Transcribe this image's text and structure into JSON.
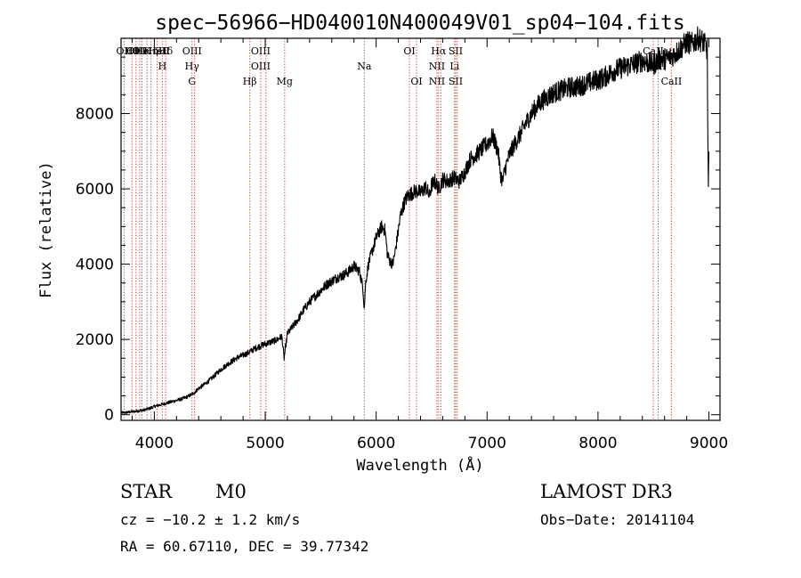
{
  "chart_data": {
    "type": "line",
    "title": "spec−56966−HD040010N400049V01_sp04−104.fits",
    "xlabel": "Wavelength (Å)",
    "ylabel": "Flux (relative)",
    "xlim": [
      3700,
      9100
    ],
    "ylim": [
      -150,
      10000
    ],
    "xticks": [
      4000,
      5000,
      6000,
      7000,
      8000,
      9000
    ],
    "yticks": [
      0,
      2000,
      4000,
      6000,
      8000
    ],
    "grid": false,
    "series": [
      {
        "name": "flux",
        "x": [
          3700,
          3750,
          3800,
          3850,
          3900,
          3950,
          4000,
          4050,
          4100,
          4150,
          4200,
          4250,
          4300,
          4350,
          4400,
          4450,
          4500,
          4550,
          4600,
          4650,
          4700,
          4750,
          4800,
          4850,
          4900,
          4950,
          5000,
          5050,
          5100,
          5150,
          5170,
          5200,
          5250,
          5300,
          5350,
          5400,
          5450,
          5500,
          5550,
          5600,
          5650,
          5700,
          5750,
          5800,
          5850,
          5880,
          5893,
          5905,
          5930,
          5950,
          6000,
          6050,
          6080,
          6100,
          6120,
          6150,
          6170,
          6200,
          6220,
          6250,
          6280,
          6300,
          6330,
          6360,
          6400,
          6450,
          6480,
          6500,
          6530,
          6563,
          6600,
          6650,
          6700,
          6750,
          6800,
          6850,
          6900,
          6950,
          7000,
          7050,
          7100,
          7120,
          7140,
          7160,
          7200,
          7250,
          7300,
          7350,
          7400,
          7450,
          7500,
          7550,
          7600,
          7650,
          7700,
          7750,
          7800,
          7850,
          7900,
          7950,
          8000,
          8050,
          8100,
          8150,
          8200,
          8250,
          8300,
          8350,
          8400,
          8450,
          8500,
          8550,
          8600,
          8650,
          8700,
          8750,
          8800,
          8850,
          8900,
          8950,
          8985,
          8990,
          8995,
          9000
        ],
        "values": [
          50,
          60,
          80,
          100,
          120,
          160,
          220,
          260,
          300,
          340,
          380,
          420,
          480,
          560,
          700,
          800,
          920,
          1060,
          1200,
          1320,
          1420,
          1520,
          1580,
          1650,
          1750,
          1820,
          1880,
          1930,
          1980,
          2080,
          1500,
          2150,
          2350,
          2550,
          2800,
          3000,
          3150,
          3300,
          3450,
          3550,
          3650,
          3700,
          3800,
          3950,
          3800,
          3400,
          2800,
          3500,
          4000,
          4200,
          4700,
          5000,
          4900,
          4300,
          4100,
          4000,
          4300,
          4900,
          5300,
          5600,
          5800,
          5850,
          5900,
          5950,
          5900,
          6050,
          5800,
          6100,
          6200,
          6000,
          6250,
          6200,
          6300,
          6200,
          6450,
          6800,
          6900,
          7050,
          7200,
          7400,
          7000,
          6400,
          6200,
          6500,
          6900,
          7200,
          7450,
          7750,
          8000,
          8200,
          8350,
          8450,
          8550,
          8600,
          8650,
          8700,
          8700,
          8750,
          8800,
          8850,
          8900,
          8950,
          9050,
          9150,
          9200,
          9250,
          9300,
          9350,
          9400,
          9350,
          9300,
          9450,
          9450,
          9500,
          9600,
          9750,
          9900,
          9850,
          10000,
          9900,
          9700,
          7500,
          6000,
          6900
        ]
      }
    ],
    "lines": [
      {
        "wave": 3727,
        "rows": [
          "OII"
        ]
      },
      {
        "wave": 3798,
        "rows": [
          "Hθ"
        ]
      },
      {
        "wave": 3835,
        "rows": [
          "CIII"
        ]
      },
      {
        "wave": 3869,
        "rows": [
          "OII"
        ]
      },
      {
        "wave": 3889,
        "rows": [
          "He"
        ]
      },
      {
        "wave": 3934,
        "rows": [
          "K"
        ]
      },
      {
        "wave": 3970,
        "rows": [
          "Hη"
        ]
      },
      {
        "wave": 4026,
        "rows": [
          "HeI"
        ]
      },
      {
        "wave": 4072,
        "rows": [
          "SII",
          "H"
        ]
      },
      {
        "wave": 4102,
        "rows": [
          "Hδ"
        ]
      },
      {
        "wave": 4340,
        "rows": [
          "OIII",
          "Hγ",
          "G"
        ]
      },
      {
        "wave": 4363,
        "rows": []
      },
      {
        "wave": 4861,
        "rows": [
          "",
          "",
          "Hβ"
        ]
      },
      {
        "wave": 4959,
        "rows": [
          "OIII",
          "OIII"
        ]
      },
      {
        "wave": 5007,
        "rows": []
      },
      {
        "wave": 5175,
        "rows": [
          "",
          "",
          "Mg"
        ]
      },
      {
        "wave": 5893,
        "rows": [
          "",
          "Na"
        ]
      },
      {
        "wave": 6300,
        "rows": [
          "OI"
        ]
      },
      {
        "wave": 6364,
        "rows": [
          "",
          "",
          "OI"
        ]
      },
      {
        "wave": 6548,
        "rows": [
          "",
          "NII",
          "NII"
        ]
      },
      {
        "wave": 6563,
        "rows": [
          "Hα"
        ]
      },
      {
        "wave": 6583,
        "rows": []
      },
      {
        "wave": 6707,
        "rows": [
          "",
          "Li"
        ]
      },
      {
        "wave": 6717,
        "rows": [
          "SII",
          "",
          "SII"
        ]
      },
      {
        "wave": 6731,
        "rows": []
      },
      {
        "wave": 8498,
        "rows": [
          "CaII",
          "OI"
        ]
      },
      {
        "wave": 8542,
        "rows": [
          "",
          "NII"
        ]
      },
      {
        "wave": 8662,
        "rows": [
          "",
          "",
          "CaII"
        ]
      }
    ]
  },
  "info": {
    "object_class": "STAR",
    "subclass": "M0",
    "survey": "LAMOST DR3",
    "redshift": "cz = −10.2 ± 1.2 km/s",
    "obs_date": "Obs−Date: 20141104",
    "coords": "RA =  60.67110, DEC =  39.77342"
  }
}
